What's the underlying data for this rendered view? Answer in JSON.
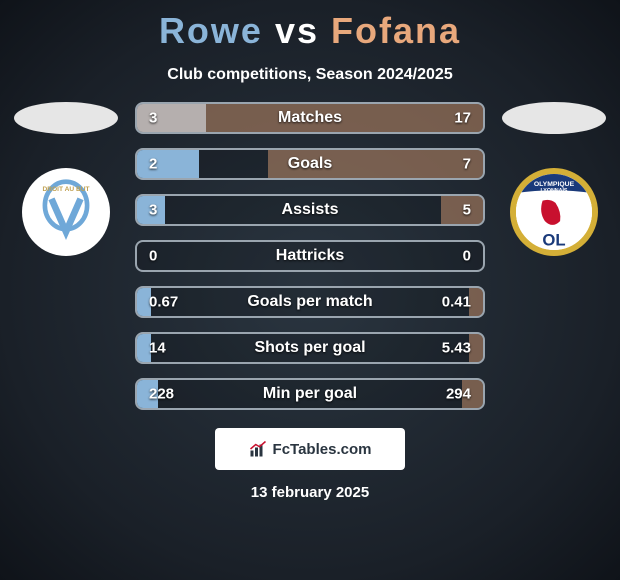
{
  "title": {
    "player1": "Rowe",
    "vs": "vs",
    "player2": "Fofana"
  },
  "subtitle": "Club competitions, Season 2024/2025",
  "colors": {
    "player1": "#8ab4d8",
    "player2": "#e8a87c",
    "border": "#9aa5af"
  },
  "stats": [
    {
      "label": "Matches",
      "left_val": "3",
      "right_val": "17",
      "left_pct": 20,
      "right_pct": 100
    },
    {
      "label": "Goals",
      "left_val": "2",
      "right_val": "7",
      "left_pct": 18,
      "right_pct": 62
    },
    {
      "label": "Assists",
      "left_val": "3",
      "right_val": "5",
      "left_pct": 8,
      "right_pct": 12
    },
    {
      "label": "Hattricks",
      "left_val": "0",
      "right_val": "0",
      "left_pct": 0,
      "right_pct": 0
    },
    {
      "label": "Goals per match",
      "left_val": "0.67",
      "right_val": "0.41",
      "left_pct": 4,
      "right_pct": 4
    },
    {
      "label": "Shots per goal",
      "left_val": "14",
      "right_val": "5.43",
      "left_pct": 4,
      "right_pct": 4
    },
    {
      "label": "Min per goal",
      "left_val": "228",
      "right_val": "294",
      "left_pct": 6,
      "right_pct": 6
    }
  ],
  "teams": {
    "left": {
      "name": "Olympique Marseille",
      "logo_key": "om"
    },
    "right": {
      "name": "Olympique Lyonnais",
      "logo_key": "lyon"
    }
  },
  "footer_brand": "FcTables.com",
  "date": "13 february 2025"
}
